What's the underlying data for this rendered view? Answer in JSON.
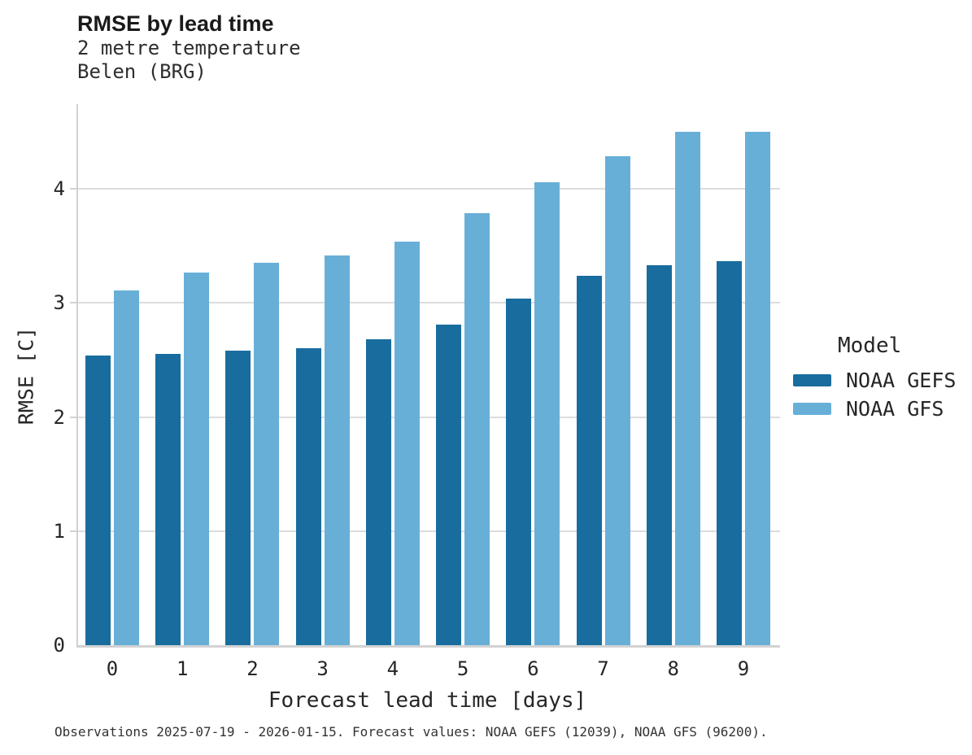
{
  "header": {
    "title": "RMSE by lead time",
    "subtitle_line1": "2 metre temperature",
    "subtitle_line2": "Belen (BRG)"
  },
  "chart_data": {
    "type": "bar",
    "title": "RMSE by lead time",
    "subtitle": [
      "2 metre temperature",
      "Belen (BRG)"
    ],
    "categories": [
      "0",
      "1",
      "2",
      "3",
      "4",
      "5",
      "6",
      "7",
      "8",
      "9"
    ],
    "series": [
      {
        "name": "NOAA GEFS",
        "color": "#186d9e",
        "values": [
          2.54,
          2.55,
          2.58,
          2.6,
          2.68,
          2.81,
          3.04,
          3.24,
          3.33,
          3.37
        ]
      },
      {
        "name": "NOAA GFS",
        "color": "#68afd8",
        "values": [
          3.11,
          3.27,
          3.35,
          3.42,
          3.54,
          3.79,
          4.06,
          4.29,
          4.5,
          4.5
        ]
      }
    ],
    "xlabel": "Forecast lead time [days]",
    "ylabel": "RMSE [C]",
    "ylim": [
      0,
      4.743
    ],
    "yticks": [
      0,
      1,
      2,
      3,
      4
    ],
    "grid": true,
    "legend_title": "Model",
    "legend_position": "right"
  },
  "legend": {
    "title": "Model",
    "items": [
      {
        "label": "NOAA GEFS",
        "color": "#186d9e"
      },
      {
        "label": "NOAA GFS",
        "color": "#68afd8"
      }
    ]
  },
  "caption": "Observations 2025-07-19 - 2026-01-15. Forecast values: NOAA GEFS (12039), NOAA GFS (96200)."
}
